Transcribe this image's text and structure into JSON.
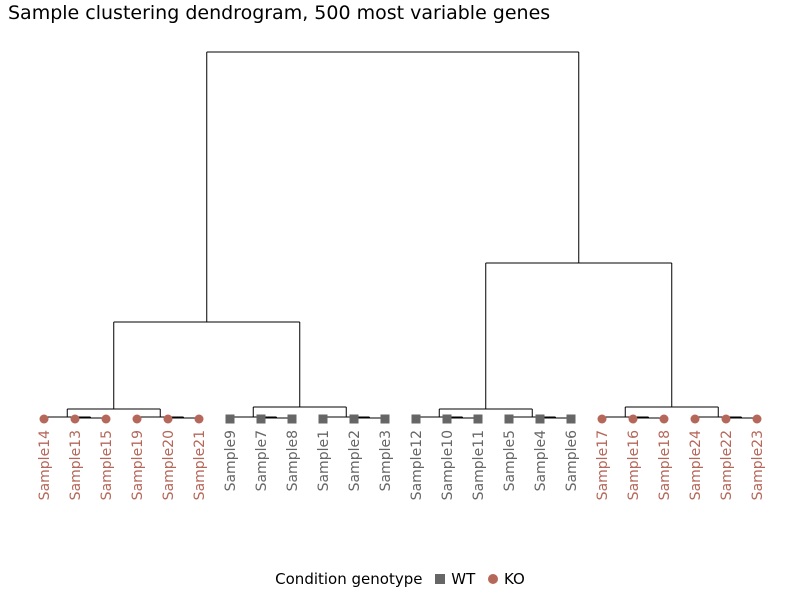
{
  "chart_data": {
    "type": "dendrogram",
    "title": "Sample clustering dendrogram, 500 most variable genes",
    "legend": {
      "title": "Condition genotype",
      "placement": "bottom",
      "entries": [
        {
          "name": "WT",
          "shape": "square",
          "color": "#666666"
        },
        {
          "name": "KO",
          "shape": "circle",
          "color": "#b5675a"
        }
      ]
    },
    "leaves": [
      {
        "label": "Sample14",
        "group": "KO"
      },
      {
        "label": "Sample13",
        "group": "KO"
      },
      {
        "label": "Sample15",
        "group": "KO"
      },
      {
        "label": "Sample19",
        "group": "KO"
      },
      {
        "label": "Sample20",
        "group": "KO"
      },
      {
        "label": "Sample21",
        "group": "KO"
      },
      {
        "label": "Sample9",
        "group": "WT"
      },
      {
        "label": "Sample7",
        "group": "WT"
      },
      {
        "label": "Sample8",
        "group": "WT"
      },
      {
        "label": "Sample1",
        "group": "WT"
      },
      {
        "label": "Sample2",
        "group": "WT"
      },
      {
        "label": "Sample3",
        "group": "WT"
      },
      {
        "label": "Sample12",
        "group": "WT"
      },
      {
        "label": "Sample10",
        "group": "WT"
      },
      {
        "label": "Sample11",
        "group": "WT"
      },
      {
        "label": "Sample5",
        "group": "WT"
      },
      {
        "label": "Sample4",
        "group": "WT"
      },
      {
        "label": "Sample6",
        "group": "WT"
      },
      {
        "label": "Sample17",
        "group": "KO"
      },
      {
        "label": "Sample16",
        "group": "KO"
      },
      {
        "label": "Sample18",
        "group": "KO"
      },
      {
        "label": "Sample24",
        "group": "KO"
      },
      {
        "label": "Sample22",
        "group": "KO"
      },
      {
        "label": "Sample23",
        "group": "KO"
      }
    ],
    "merges": [
      {
        "left": 1,
        "right": 2,
        "height": 1
      },
      {
        "left": 0,
        "right": "m0",
        "height": 2
      },
      {
        "left": 4,
        "right": 5,
        "height": 1
      },
      {
        "left": 3,
        "right": "m2",
        "height": 2
      },
      {
        "left": "m1",
        "right": "m3",
        "height": 10
      },
      {
        "left": 7,
        "right": 8,
        "height": 1
      },
      {
        "left": 6,
        "right": "m5",
        "height": 2
      },
      {
        "left": 10,
        "right": 11,
        "height": 1
      },
      {
        "left": 9,
        "right": "m7",
        "height": 2
      },
      {
        "left": "m6",
        "right": "m8",
        "height": 12
      },
      {
        "left": "m4",
        "right": "m9",
        "height": 97
      },
      {
        "left": 13,
        "right": 14,
        "height": 1
      },
      {
        "left": 12,
        "right": "m11",
        "height": 2
      },
      {
        "left": 16,
        "right": 17,
        "height": 1
      },
      {
        "left": 15,
        "right": "m13",
        "height": 2
      },
      {
        "left": "m12",
        "right": "m14",
        "height": 10
      },
      {
        "left": 19,
        "right": 20,
        "height": 1
      },
      {
        "left": 18,
        "right": "m16",
        "height": 2
      },
      {
        "left": 22,
        "right": 23,
        "height": 1
      },
      {
        "left": 21,
        "right": "m18",
        "height": 2
      },
      {
        "left": "m17",
        "right": "m19",
        "height": 12
      },
      {
        "left": "m15",
        "right": "m20",
        "height": 156
      },
      {
        "left": "m10",
        "right": "m21",
        "height": 367
      }
    ]
  }
}
